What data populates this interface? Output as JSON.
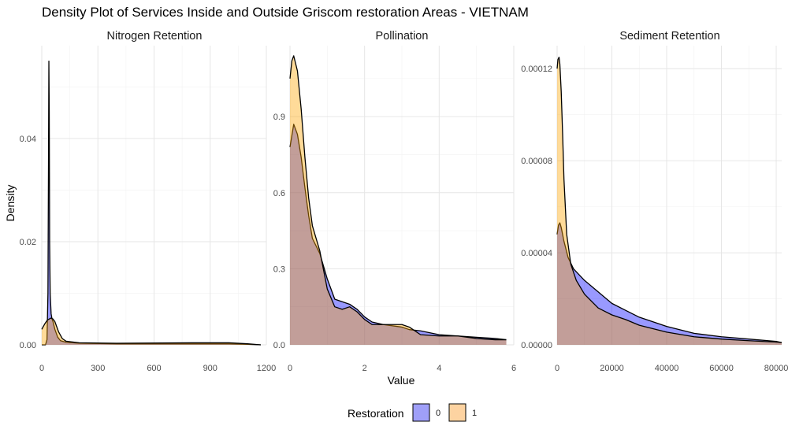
{
  "title": "Density Plot of Services Inside and Outside Griscom restoration Areas - VIETNAM",
  "xlabel": "Value",
  "ylabel": "Density",
  "legend": {
    "title": "Restoration",
    "placement": "bottom",
    "items": [
      {
        "label": "0",
        "color": "#9f9ff8"
      },
      {
        "label": "1",
        "color": "#fdd3a1"
      }
    ]
  },
  "colors": {
    "series0": "#0000ff",
    "series1": "#ffa500",
    "alpha": 0.4,
    "outline": "#000000"
  },
  "chart_data": [
    {
      "type": "area",
      "panel": "Nitrogen Retention",
      "xlim": [
        0,
        1200
      ],
      "ylim": [
        0,
        0.058
      ],
      "xticks": [
        0,
        300,
        600,
        900,
        1200
      ],
      "xtick_labels": [
        "0",
        "300",
        "600",
        "900",
        "1200"
      ],
      "yticks": [
        0,
        0.02,
        0.04
      ],
      "ytick_labels": [
        "0.00",
        "0.02",
        "0.04"
      ],
      "grid": true,
      "series": [
        {
          "name": "0",
          "x": [
            0,
            20,
            28,
            33,
            36,
            38,
            40,
            42,
            45,
            50,
            55,
            60,
            70,
            85,
            100,
            130,
            200,
            400,
            800,
            1000,
            1100,
            1170
          ],
          "y": [
            0,
            0,
            0.001,
            0.01,
            0.035,
            0.055,
            0.045,
            0.02,
            0.01,
            0.006,
            0.005,
            0.0045,
            0.003,
            0.0015,
            0.0008,
            0.0005,
            0.0003,
            0.0002,
            0.0002,
            0.0002,
            0.0001,
            0
          ]
        },
        {
          "name": "1",
          "x": [
            0,
            15,
            30,
            40,
            50,
            60,
            70,
            90,
            110,
            130,
            200,
            400,
            800,
            900,
            1000,
            1100,
            1170
          ],
          "y": [
            0.003,
            0.004,
            0.0048,
            0.005,
            0.0052,
            0.005,
            0.0045,
            0.0025,
            0.0012,
            0.0007,
            0.0004,
            0.0003,
            0.0004,
            0.0004,
            0.0004,
            0.0002,
            0
          ]
        }
      ]
    },
    {
      "type": "area",
      "panel": "Pollination",
      "xlim": [
        0,
        6
      ],
      "ylim": [
        0,
        1.18
      ],
      "xticks": [
        0,
        2,
        4,
        6
      ],
      "xtick_labels": [
        "0",
        "2",
        "4",
        "6"
      ],
      "yticks": [
        0,
        0.3,
        0.6,
        0.9
      ],
      "ytick_labels": [
        "0.0",
        "0.3",
        "0.6",
        "0.9"
      ],
      "grid": true,
      "series": [
        {
          "name": "0",
          "x": [
            0,
            0.1,
            0.2,
            0.3,
            0.4,
            0.5,
            0.6,
            0.8,
            1,
            1.2,
            1.4,
            1.6,
            1.8,
            2,
            2.2,
            2.5,
            3,
            3.2,
            3.5,
            4,
            4.5,
            5,
            5.5,
            5.8
          ],
          "y": [
            0.78,
            0.87,
            0.83,
            0.74,
            0.62,
            0.51,
            0.42,
            0.36,
            0.26,
            0.18,
            0.17,
            0.16,
            0.14,
            0.11,
            0.09,
            0.08,
            0.07,
            0.06,
            0.055,
            0.04,
            0.035,
            0.03,
            0.025,
            0.02
          ]
        },
        {
          "name": "1",
          "x": [
            0,
            0.05,
            0.1,
            0.2,
            0.3,
            0.4,
            0.5,
            0.6,
            0.8,
            1,
            1.2,
            1.4,
            1.6,
            1.8,
            2,
            2.2,
            2.5,
            3,
            3.2,
            3.5,
            4,
            4.5,
            5,
            5.5,
            5.8
          ],
          "y": [
            1.05,
            1.12,
            1.14,
            1.08,
            0.93,
            0.74,
            0.58,
            0.47,
            0.37,
            0.22,
            0.15,
            0.14,
            0.15,
            0.13,
            0.1,
            0.08,
            0.08,
            0.08,
            0.07,
            0.04,
            0.035,
            0.035,
            0.025,
            0.02,
            0.02
          ]
        }
      ]
    },
    {
      "type": "area",
      "panel": "Sediment Retention",
      "xlim": [
        0,
        82000
      ],
      "ylim": [
        0,
        0.00013
      ],
      "xticks": [
        0,
        20000,
        40000,
        60000,
        80000
      ],
      "xtick_labels": [
        "0",
        "20000",
        "40000",
        "60000",
        "80000"
      ],
      "yticks": [
        0,
        4e-05,
        8e-05,
        0.00012
      ],
      "ytick_labels": [
        "0.00000",
        "0.00004",
        "0.00008",
        "0.00012"
      ],
      "grid": true,
      "series": [
        {
          "name": "0",
          "x": [
            0,
            500,
            1000,
            1500,
            2500,
            4000,
            6000,
            10000,
            15000,
            20000,
            25000,
            30000,
            40000,
            50000,
            60000,
            70000,
            80000,
            82000
          ],
          "y": [
            4.8e-05,
            5.2e-05,
            5.3e-05,
            5.1e-05,
            4.5e-05,
            3.8e-05,
            3.3e-05,
            2.8e-05,
            2.3e-05,
            1.8e-05,
            1.5e-05,
            1.2e-05,
            8e-06,
            5e-06,
            3.5e-06,
            2.5e-06,
            1.5e-06,
            1e-06
          ]
        },
        {
          "name": "1",
          "x": [
            0,
            300,
            700,
            1000,
            1500,
            2000,
            2500,
            3500,
            5000,
            7000,
            10000,
            15000,
            20000,
            25000,
            30000,
            40000,
            50000,
            60000,
            70000,
            80000,
            82000
          ],
          "y": [
            0.00012,
            0.000124,
            0.000125,
            0.000122,
            0.00011,
            9.2e-05,
            7.2e-05,
            4.8e-05,
            3.5e-05,
            2.8e-05,
            2.2e-05,
            1.6e-05,
            1.3e-05,
            1.1e-05,
            8.5e-06,
            5.5e-06,
            3.5e-06,
            2.5e-06,
            1.8e-06,
            1.2e-06,
            1e-06
          ]
        }
      ]
    }
  ]
}
